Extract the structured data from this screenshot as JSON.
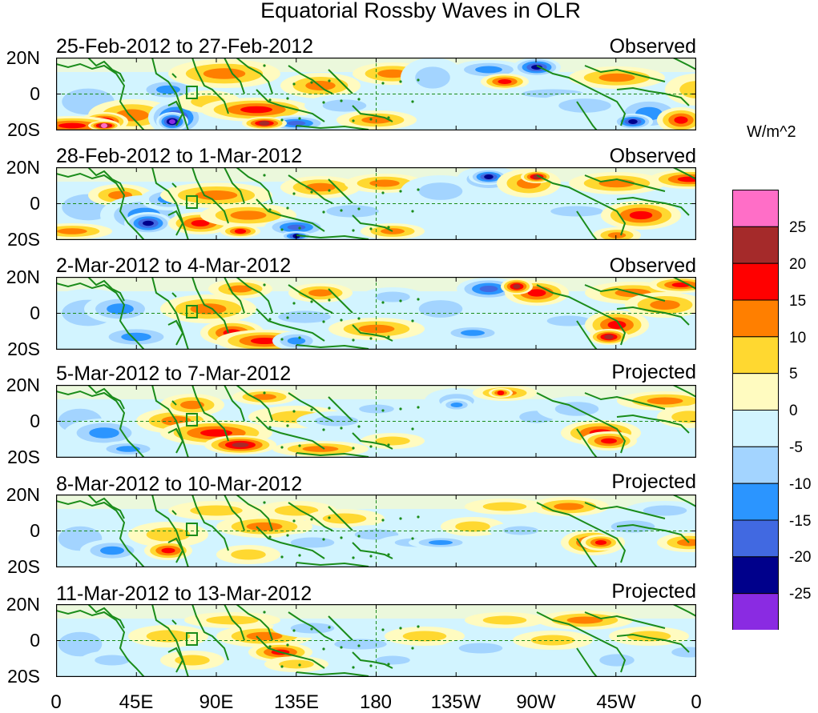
{
  "title": "Equatorial Rossby Waves in OLR",
  "panels": [
    {
      "date_range": "25-Feb-2012 to 27-Feb-2012",
      "label": "Observed"
    },
    {
      "date_range": "28-Feb-2012 to 1-Mar-2012",
      "label": "Observed"
    },
    {
      "date_range": "2-Mar-2012 to 4-Mar-2012",
      "label": "Observed"
    },
    {
      "date_range": "5-Mar-2012 to 7-Mar-2012",
      "label": "Projected"
    },
    {
      "date_range": "8-Mar-2012 to 10-Mar-2012",
      "label": "Projected"
    },
    {
      "date_range": "11-Mar-2012 to 13-Mar-2012",
      "label": "Projected"
    }
  ],
  "lat_labels": [
    "20N",
    "0",
    "20S"
  ],
  "lon_labels": [
    "0",
    "45E",
    "90E",
    "135E",
    "180",
    "135W",
    "90W",
    "45W",
    "0"
  ],
  "colorbar": {
    "units": "W/m^2",
    "tick_labels": [
      "25",
      "20",
      "15",
      "10",
      "5",
      "0",
      "-5",
      "-10",
      "-15",
      "-20",
      "-25"
    ],
    "colors": [
      "#ff6ec7",
      "#a52a2a",
      "#ff0000",
      "#ff7f00",
      "#ffd830",
      "#fffbc0",
      "#d2f4ff",
      "#a3d4ff",
      "#2b95ff",
      "#4169e1",
      "#00008b",
      "#8a2be2"
    ]
  },
  "colors": {
    "coastline": "#1a8c1a",
    "dashed_reference": "#1a8c1a"
  }
}
